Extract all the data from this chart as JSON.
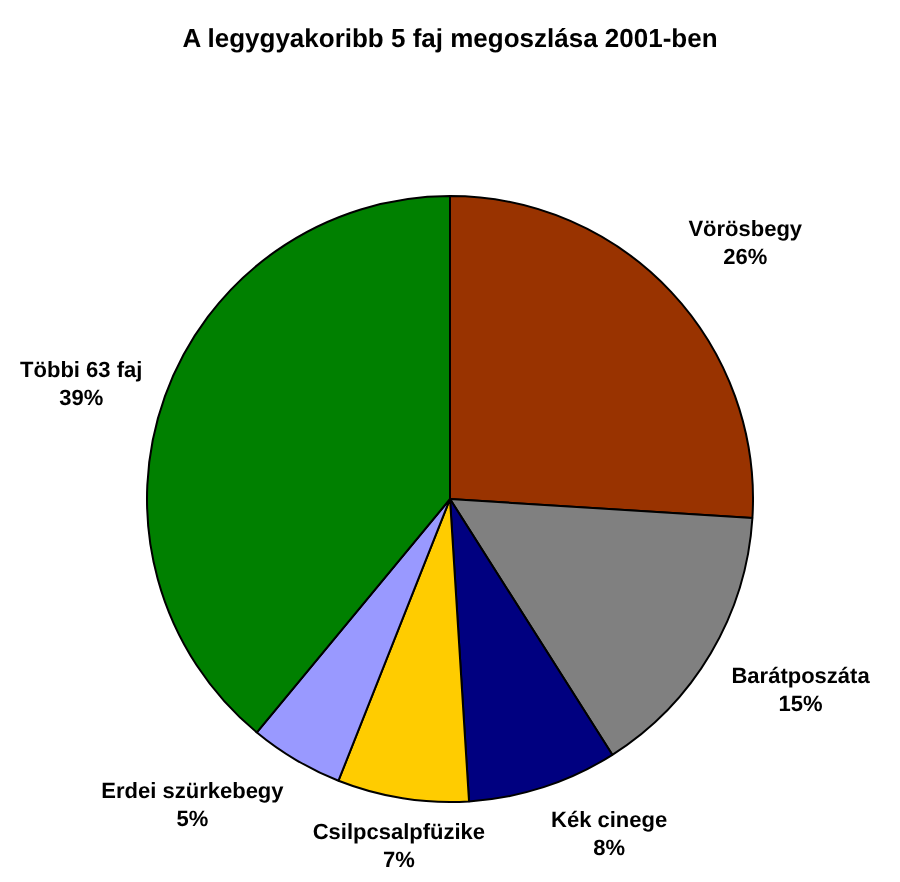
{
  "chart_data": {
    "type": "pie",
    "title": "A legygyakoribb 5 faj megoszlása 2001-ben",
    "categories": [
      "Vörösbegy",
      "Barátposzáta",
      "Kék cinege",
      "Csilpcsalpfüzike",
      "Erdei szürkebegy",
      "Többi 63 faj"
    ],
    "values": [
      26,
      15,
      8,
      7,
      5,
      39
    ],
    "value_labels": [
      "26%",
      "15%",
      "8%",
      "7%",
      "5%",
      "39%"
    ],
    "colors": [
      "#993300",
      "#808080",
      "#000080",
      "#ffcc00",
      "#9999ff",
      "#008000"
    ]
  }
}
